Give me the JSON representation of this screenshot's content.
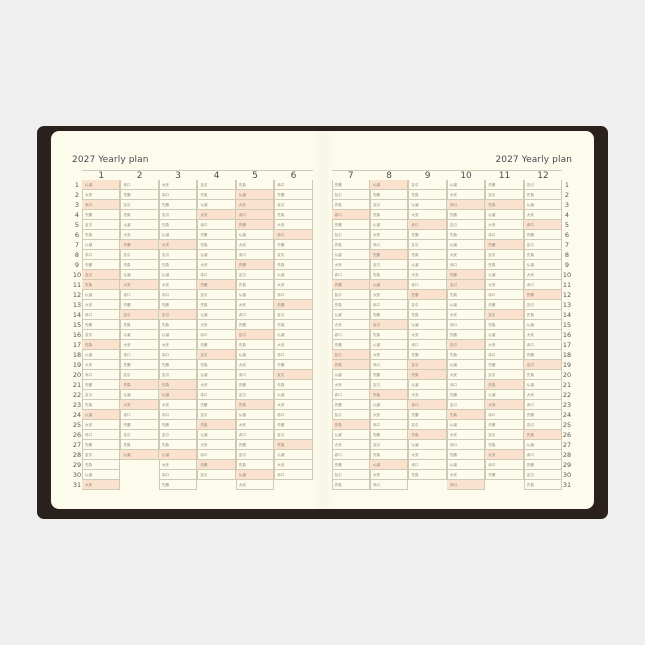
{
  "title_left": "2027 Yearly plan",
  "title_right": "2027 Yearly plan",
  "colors": {
    "frame": "#2a201c",
    "page": "#fdfcec",
    "highlight": "#fbe2cf"
  },
  "months": [
    {
      "label": "1",
      "highlighted": [
        1,
        3,
        10,
        11,
        17,
        24,
        31
      ],
      "days": [
        "仏滅",
        "大安",
        "赤口",
        "先勝",
        "友引",
        "先負",
        "仏滅",
        "赤口",
        "先勝",
        "友引",
        "先負",
        "仏滅",
        "大安",
        "赤口",
        "先勝",
        "友引",
        "先負",
        "仏滅",
        "大安",
        "赤口",
        "先勝",
        "友引",
        "先負",
        "仏滅",
        "大安",
        "赤口",
        "先勝",
        "友引",
        "先負",
        "仏滅",
        "大安"
      ]
    },
    {
      "label": "2",
      "highlighted": [
        7,
        11,
        14,
        21,
        23,
        28
      ],
      "days": [
        "赤口",
        "先勝",
        "友引",
        "先負",
        "仏滅",
        "大安",
        "先勝",
        "友引",
        "先負",
        "仏滅",
        "大安",
        "赤口",
        "先勝",
        "友引",
        "先負",
        "仏滅",
        "大安",
        "赤口",
        "先勝",
        "友引",
        "先負",
        "仏滅",
        "大安",
        "赤口",
        "先勝",
        "友引",
        "先負",
        "仏滅"
      ]
    },
    {
      "label": "3",
      "highlighted": [
        7,
        14,
        21,
        22,
        28
      ],
      "days": [
        "大安",
        "赤口",
        "先勝",
        "友引",
        "先負",
        "仏滅",
        "大安",
        "友引",
        "先負",
        "仏滅",
        "大安",
        "赤口",
        "先勝",
        "友引",
        "先負",
        "仏滅",
        "大安",
        "赤口",
        "先勝",
        "友引",
        "先負",
        "仏滅",
        "大安",
        "赤口",
        "先勝",
        "友引",
        "先負",
        "仏滅",
        "大安",
        "赤口",
        "先勝"
      ]
    },
    {
      "label": "4",
      "highlighted": [
        4,
        11,
        18,
        25,
        29
      ],
      "days": [
        "友引",
        "先負",
        "仏滅",
        "大安",
        "赤口",
        "先勝",
        "先負",
        "仏滅",
        "大安",
        "赤口",
        "先勝",
        "友引",
        "先負",
        "仏滅",
        "大安",
        "赤口",
        "先勝",
        "友引",
        "先負",
        "仏滅",
        "大安",
        "赤口",
        "先勝",
        "友引",
        "先負",
        "仏滅",
        "大安",
        "赤口",
        "先勝",
        "友引"
      ]
    },
    {
      "label": "5",
      "highlighted": [
        2,
        3,
        4,
        5,
        9,
        16,
        23,
        30
      ],
      "days": [
        "先負",
        "仏滅",
        "大安",
        "赤口",
        "先勝",
        "仏滅",
        "大安",
        "赤口",
        "先勝",
        "友引",
        "先負",
        "仏滅",
        "大安",
        "赤口",
        "先勝",
        "友引",
        "先負",
        "仏滅",
        "大安",
        "赤口",
        "先勝",
        "友引",
        "先負",
        "仏滅",
        "大安",
        "赤口",
        "先勝",
        "友引",
        "先負",
        "仏滅",
        "大安"
      ]
    },
    {
      "label": "6",
      "highlighted": [
        6,
        13,
        20,
        27
      ],
      "days": [
        "赤口",
        "先勝",
        "友引",
        "先負",
        "大安",
        "赤口",
        "先勝",
        "友引",
        "先負",
        "仏滅",
        "大安",
        "赤口",
        "先勝",
        "友引",
        "先負",
        "仏滅",
        "大安",
        "赤口",
        "先勝",
        "友引",
        "先負",
        "仏滅",
        "大安",
        "赤口",
        "先勝",
        "友引",
        "先負",
        "仏滅",
        "大安",
        "赤口"
      ]
    },
    {
      "label": "7",
      "highlighted": [
        4,
        11,
        18,
        19,
        25
      ],
      "days": [
        "先勝",
        "友引",
        "先負",
        "赤口",
        "先勝",
        "友引",
        "先負",
        "仏滅",
        "大安",
        "赤口",
        "先勝",
        "友引",
        "先負",
        "仏滅",
        "大安",
        "赤口",
        "先勝",
        "友引",
        "先負",
        "仏滅",
        "大安",
        "赤口",
        "先勝",
        "友引",
        "先負",
        "仏滅",
        "大安",
        "赤口",
        "先勝",
        "友引",
        "先負"
      ]
    },
    {
      "label": "8",
      "highlighted": [
        1,
        8,
        11,
        15,
        22,
        29
      ],
      "days": [
        "仏滅",
        "先勝",
        "友引",
        "先負",
        "仏滅",
        "大安",
        "赤口",
        "先勝",
        "友引",
        "先負",
        "仏滅",
        "大安",
        "赤口",
        "先勝",
        "友引",
        "先負",
        "仏滅",
        "大安",
        "赤口",
        "先勝",
        "友引",
        "先負",
        "仏滅",
        "大安",
        "赤口",
        "先勝",
        "友引",
        "先負",
        "仏滅",
        "大安",
        "赤口"
      ]
    },
    {
      "label": "9",
      "highlighted": [
        5,
        12,
        19,
        20,
        23,
        26
      ],
      "days": [
        "友引",
        "先負",
        "仏滅",
        "大安",
        "赤口",
        "先勝",
        "友引",
        "先負",
        "仏滅",
        "大安",
        "赤口",
        "先勝",
        "友引",
        "先負",
        "仏滅",
        "大安",
        "赤口",
        "先勝",
        "友引",
        "先負",
        "仏滅",
        "大安",
        "赤口",
        "先勝",
        "友引",
        "先負",
        "仏滅",
        "大安",
        "赤口",
        "先負"
      ]
    },
    {
      "label": "10",
      "highlighted": [
        3,
        10,
        11,
        17,
        24,
        31
      ],
      "days": [
        "仏滅",
        "大安",
        "赤口",
        "先勝",
        "友引",
        "先負",
        "仏滅",
        "大安",
        "赤口",
        "先勝",
        "友引",
        "先負",
        "仏滅",
        "大安",
        "赤口",
        "先勝",
        "友引",
        "先負",
        "仏滅",
        "大安",
        "赤口",
        "先勝",
        "友引",
        "先負",
        "仏滅",
        "大安",
        "赤口",
        "先勝",
        "仏滅",
        "大安",
        "赤口"
      ]
    },
    {
      "label": "11",
      "highlighted": [
        3,
        7,
        14,
        21,
        23,
        28
      ],
      "days": [
        "先勝",
        "友引",
        "先負",
        "仏滅",
        "大安",
        "赤口",
        "先勝",
        "友引",
        "先負",
        "仏滅",
        "大安",
        "赤口",
        "先勝",
        "友引",
        "先負",
        "仏滅",
        "大安",
        "赤口",
        "先勝",
        "友引",
        "先負",
        "仏滅",
        "大安",
        "赤口",
        "先勝",
        "友引",
        "先負",
        "大安",
        "赤口",
        "先勝"
      ]
    },
    {
      "label": "12",
      "highlighted": [
        5,
        12,
        19,
        26
      ],
      "days": [
        "友引",
        "先負",
        "仏滅",
        "大安",
        "赤口",
        "先勝",
        "友引",
        "先負",
        "仏滅",
        "大安",
        "赤口",
        "先勝",
        "友引",
        "先負",
        "仏滅",
        "大安",
        "赤口",
        "先勝",
        "友引",
        "先負",
        "仏滅",
        "大安",
        "赤口",
        "先勝",
        "友引",
        "先負",
        "仏滅",
        "赤口",
        "先勝",
        "友引",
        "先負"
      ]
    }
  ]
}
